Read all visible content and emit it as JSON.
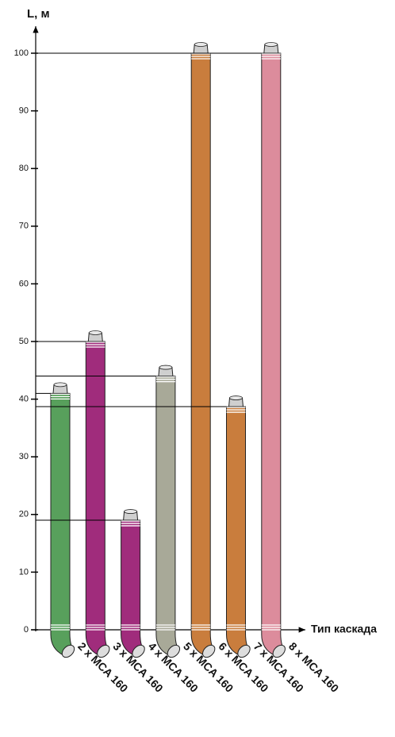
{
  "chart_data": {
    "type": "bar",
    "y_label": "L, м",
    "x_label": "Тип каскада",
    "categories": [
      "2 x MCA 160",
      "3 x MCA 160",
      "4 x MCA 160",
      "5 x MCA 160",
      "6 x MCA 160",
      "7 x MCA 160",
      "8 x MCA 160"
    ],
    "values": [
      41,
      50,
      19,
      44,
      100,
      38.7,
      100
    ],
    "colors": [
      "#58a05c",
      "#a02c7c",
      "#a02c7c",
      "#a8a998",
      "#c97d3d",
      "#c97d3d",
      "#dc8c9c"
    ],
    "ylim": [
      0,
      104
    ],
    "yticks": [
      0,
      10,
      20,
      30,
      40,
      50,
      60,
      70,
      80,
      90,
      100
    ],
    "reference_lines": true
  }
}
